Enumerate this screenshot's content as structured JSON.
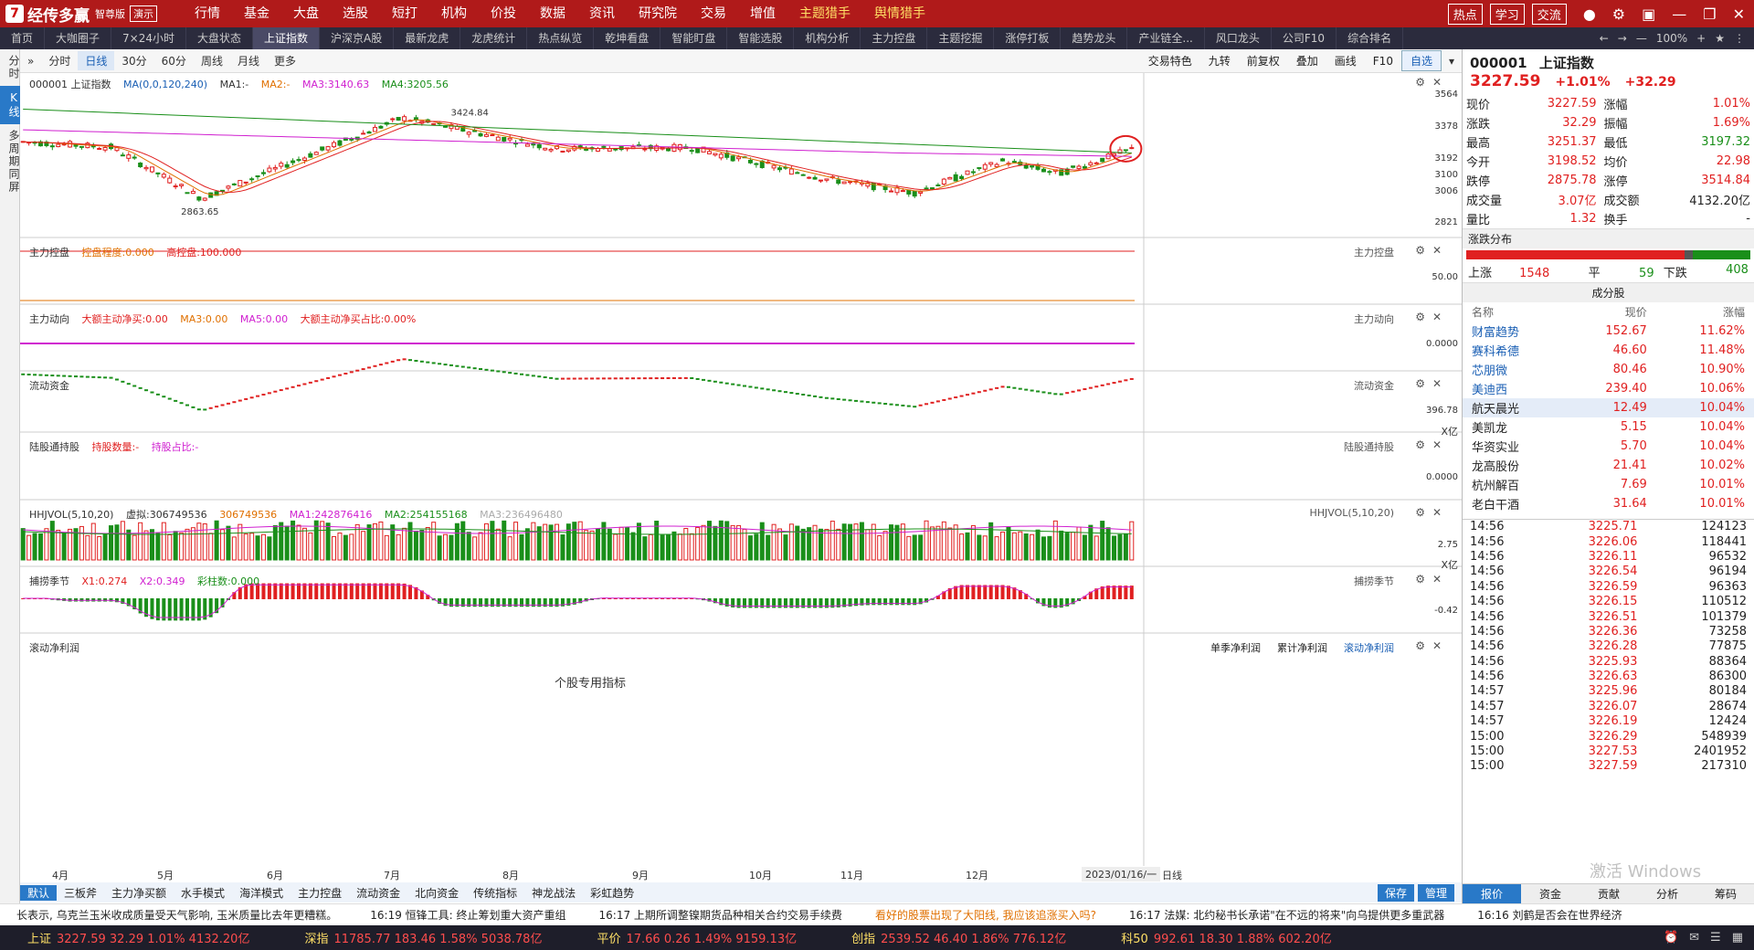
{
  "app": {
    "logo": "经传多赢",
    "edition": "智尊版",
    "demo": "演示",
    "menu": [
      "行情",
      "基金",
      "大盘",
      "选股",
      "短打",
      "机构",
      "价投",
      "数据",
      "资讯",
      "研究院",
      "交易",
      "增值",
      "主题猎手",
      "舆情猎手"
    ],
    "hot_menu": [
      "主题猎手",
      "舆情猎手"
    ],
    "top_buttons": [
      "热点",
      "学习",
      "交流"
    ]
  },
  "tabs": [
    "首页",
    "大咖圈子",
    "7×24小时",
    "大盘状态",
    "上证指数",
    "沪深京A股",
    "最新龙虎",
    "龙虎统计",
    "热点纵览",
    "乾坤看盘",
    "智能盯盘",
    "智能选股",
    "机构分析",
    "主力控盘",
    "主题挖掘",
    "涨停打板",
    "趋势龙头",
    "产业链全...",
    "风口龙头",
    "公司F10",
    "综合排名"
  ],
  "active_tab": "上证指数",
  "zoom": "100%",
  "left_strip": [
    "分时",
    "K线",
    "多周期同屏"
  ],
  "active_left": "K线",
  "chart_toolbar": {
    "periods": [
      "分时",
      "日线",
      "30分",
      "60分",
      "周线",
      "月线",
      "更多"
    ],
    "active_period": "日线",
    "right": [
      "交易特色",
      "九转",
      "前复权",
      "叠加",
      "画线",
      "F10",
      "自选"
    ]
  },
  "main_pane": {
    "title": "000001 上证指数",
    "ma_setting": "MA(0,0,120,240)",
    "ma1": "MA1:-",
    "ma2": "MA2:-",
    "ma3": "MA3:3140.63",
    "ma4": "MA4:3205.56",
    "yaxis": [
      "3564",
      "3378",
      "3192",
      "3100",
      "3006",
      "2821"
    ],
    "high_label": "3424.84",
    "low_label": "2863.65"
  },
  "panes": {
    "zlkp": {
      "name": "主力控盘",
      "a": "控盘程度:0.000",
      "b": "高控盘:100.000",
      "y": "50.00"
    },
    "zldx": {
      "name": "主力动向",
      "a": "大额主动净买:0.00",
      "b": "MA3:0.00",
      "c": "MA5:0.00",
      "d": "大额主动净买占比:0.00%",
      "y": "0.0000"
    },
    "ldzj": {
      "name": "流动资金",
      "y": "396.78",
      "unit": "X亿"
    },
    "lgt": {
      "name": "陆股通持股",
      "a": "持股数量:-",
      "b": "持股占比:-",
      "y": "0.0000"
    },
    "hhjvol": {
      "name": "HHJVOL(5,10,20)",
      "a": "虚拟:306749536",
      "b": "306749536",
      "c": "MA1:242876416",
      "d": "MA2:254155168",
      "e": "MA3:236496480",
      "y": "2.75",
      "unit": "X亿"
    },
    "blj": {
      "name": "捕捞季节",
      "a": "X1:0.274",
      "b": "X2:0.349",
      "c": "彩柱数:0.000",
      "y": "-0.42"
    },
    "gdjlr": {
      "name": "滚动净利润",
      "btns": [
        "单季净利润",
        "累计净利润",
        "滚动净利润"
      ],
      "center": "个股专用指标"
    }
  },
  "xaxis": {
    "months": [
      "4月",
      "5月",
      "6月",
      "7月",
      "8月",
      "9月",
      "10月",
      "11月",
      "12月"
    ],
    "end_date": "2023/01/16/一",
    "period": "日线"
  },
  "bottom_toolbar": {
    "items": [
      "默认",
      "三板斧",
      "主力净买额",
      "水手模式",
      "海洋模式",
      "主力控盘",
      "流动资金",
      "北向资金",
      "传统指标",
      "神龙战法",
      "彩虹趋势"
    ],
    "active": "默认",
    "right": [
      "保存",
      "管理"
    ]
  },
  "news": [
    {
      "text": "长表示, 乌克兰玉米收成质量受天气影响, 玉米质量比去年更糟糕。",
      "hl": false
    },
    {
      "text": "16:19 恒锋工具: 终止筹划重大资产重组",
      "hl": false
    },
    {
      "text": "16:17 上期所调整镍期货品种相关合约交易手续费",
      "hl": false
    },
    {
      "text": "看好的股票出现了大阳线, 我应该追涨买入吗?",
      "hl": true
    },
    {
      "text": "16:17 法媒: 北约秘书长承诺\"在不远的将来\"向乌提供更多重武器",
      "hl": false
    },
    {
      "text": "16:16 刘鹤是否会在世界经济",
      "hl": false
    }
  ],
  "ticker": [
    {
      "name": "上证",
      "v": "3227.59  32.29  1.01%  4132.20亿"
    },
    {
      "name": "深指",
      "v": "11785.77  183.46  1.58%  5038.78亿"
    },
    {
      "name": "平价",
      "v": "17.66  0.26  1.49%  9159.13亿"
    },
    {
      "name": "创指",
      "v": "2539.52  46.40  1.86%  776.12亿"
    },
    {
      "name": "科50",
      "v": "992.61  18.30  1.88%  602.20亿"
    }
  ],
  "quote": {
    "code": "000001",
    "name": "上证指数",
    "price": "3227.59",
    "pct": "+1.01%",
    "chg": "+32.29",
    "rows": [
      [
        "现价",
        "3227.59",
        "涨幅",
        "1.01%"
      ],
      [
        "涨跌",
        "32.29",
        "振幅",
        "1.69%"
      ],
      [
        "最高",
        "3251.37",
        "最低",
        "3197.32"
      ],
      [
        "今开",
        "3198.52",
        "均价",
        "22.98"
      ],
      [
        "跌停",
        "2875.78",
        "涨停",
        "3514.84"
      ],
      [
        "成交量",
        "3.07亿",
        "成交额",
        "4132.20亿"
      ],
      [
        "量比",
        "1.32",
        "换手",
        "-"
      ]
    ],
    "dist_title": "涨跌分布",
    "up_label": "上涨",
    "up": "1548",
    "flat_label": "平",
    "flat": "59",
    "down_label": "下跌",
    "down": "408",
    "cons_title": "成分股",
    "cons_header": [
      "名称",
      "现价",
      "涨幅"
    ],
    "constituents": [
      [
        "财富趋势",
        "152.67",
        "11.62%"
      ],
      [
        "赛科希德",
        "46.60",
        "11.48%"
      ],
      [
        "芯朋微",
        "80.46",
        "10.90%"
      ],
      [
        "美迪西",
        "239.40",
        "10.06%"
      ],
      [
        "航天晨光",
        "12.49",
        "10.04%"
      ],
      [
        "美凯龙",
        "5.15",
        "10.04%"
      ],
      [
        "华资实业",
        "5.70",
        "10.04%"
      ],
      [
        "龙高股份",
        "21.41",
        "10.02%"
      ],
      [
        "杭州解百",
        "7.69",
        "10.01%"
      ],
      [
        "老白干酒",
        "31.64",
        "10.01%"
      ]
    ],
    "ticks": [
      [
        "14:56",
        "3225.71",
        "124123"
      ],
      [
        "14:56",
        "3226.06",
        "118441"
      ],
      [
        "14:56",
        "3226.11",
        "96532"
      ],
      [
        "14:56",
        "3226.54",
        "96194"
      ],
      [
        "14:56",
        "3226.59",
        "96363"
      ],
      [
        "14:56",
        "3226.15",
        "110512"
      ],
      [
        "14:56",
        "3226.51",
        "101379"
      ],
      [
        "14:56",
        "3226.36",
        "73258"
      ],
      [
        "14:56",
        "3226.28",
        "77875"
      ],
      [
        "14:56",
        "3225.93",
        "88364"
      ],
      [
        "14:56",
        "3226.63",
        "86300"
      ],
      [
        "14:57",
        "3225.96",
        "80184"
      ],
      [
        "14:57",
        "3226.07",
        "28674"
      ],
      [
        "14:57",
        "3226.19",
        "12424"
      ],
      [
        "15:00",
        "3226.29",
        "548939"
      ],
      [
        "15:00",
        "3227.53",
        "2401952"
      ],
      [
        "15:00",
        "3227.59",
        "217310"
      ]
    ],
    "bottom_tabs": [
      "报价",
      "资金",
      "贡献",
      "分析",
      "筹码"
    ]
  },
  "watermark": "激活 Windows",
  "colors": {
    "up": "#e02020",
    "down": "#1a8f1a",
    "accent": "#2979c8",
    "title": "#b01a1a"
  }
}
